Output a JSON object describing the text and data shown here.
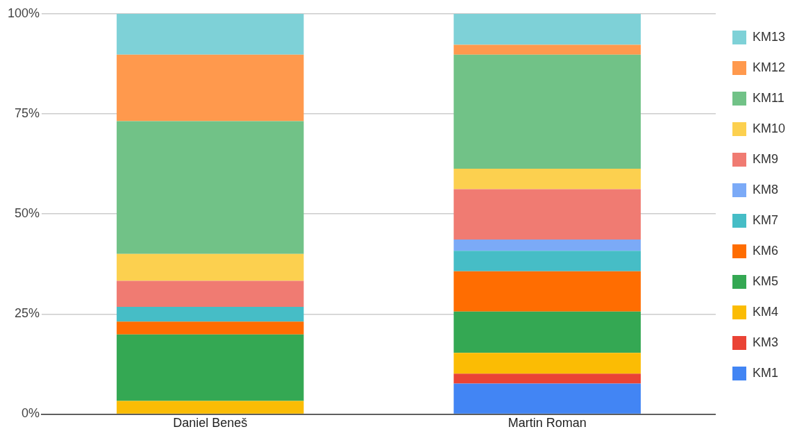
{
  "chart_data": {
    "type": "bar",
    "stacked": true,
    "categories": [
      "Daniel Beneš",
      "Martin Roman"
    ],
    "series": [
      {
        "name": "KM1",
        "color": "#4285f4",
        "values": [
          0,
          7.6
        ]
      },
      {
        "name": "KM3",
        "color": "#ea4335",
        "values": [
          0,
          2.5
        ]
      },
      {
        "name": "KM4",
        "color": "#fbbc04",
        "values": [
          3.3,
          5.2
        ]
      },
      {
        "name": "KM5",
        "color": "#34a853",
        "values": [
          16.6,
          10.3
        ]
      },
      {
        "name": "KM6",
        "color": "#ff6d01",
        "values": [
          3.2,
          10.1
        ]
      },
      {
        "name": "KM7",
        "color": "#46bdc6",
        "values": [
          3.7,
          5.1
        ]
      },
      {
        "name": "KM8",
        "color": "#7baaf7",
        "values": [
          0,
          2.8
        ]
      },
      {
        "name": "KM9",
        "color": "#f07b72",
        "values": [
          6.5,
          12.6
        ]
      },
      {
        "name": "KM10",
        "color": "#fcd04f",
        "values": [
          6.7,
          5.1
        ]
      },
      {
        "name": "KM11",
        "color": "#71c287",
        "values": [
          33.2,
          28.5
        ]
      },
      {
        "name": "KM12",
        "color": "#ff994d",
        "values": [
          16.6,
          2.5
        ]
      },
      {
        "name": "KM13",
        "color": "#7ed1d7",
        "values": [
          10.2,
          7.7
        ]
      }
    ],
    "ylim": [
      0,
      100
    ],
    "yticks": [
      {
        "value": 0,
        "label": "0%"
      },
      {
        "value": 25,
        "label": "25%"
      },
      {
        "value": 50,
        "label": "50%"
      },
      {
        "value": 75,
        "label": "75%"
      },
      {
        "value": 100,
        "label": "100%"
      }
    ],
    "grid": "y",
    "legend": "right"
  }
}
